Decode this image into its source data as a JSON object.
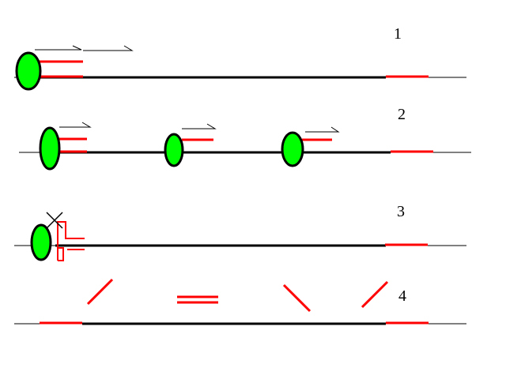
{
  "diagram": {
    "colors": {
      "background": "#ffffff",
      "dna_line": "#000000",
      "primer": "#ff0000",
      "enzyme_fill": "#00ff00",
      "enzyme_outline": "#000000"
    },
    "rows": [
      {
        "label": "1"
      },
      {
        "label": "2"
      },
      {
        "label": "3"
      },
      {
        "label": "4"
      }
    ]
  }
}
